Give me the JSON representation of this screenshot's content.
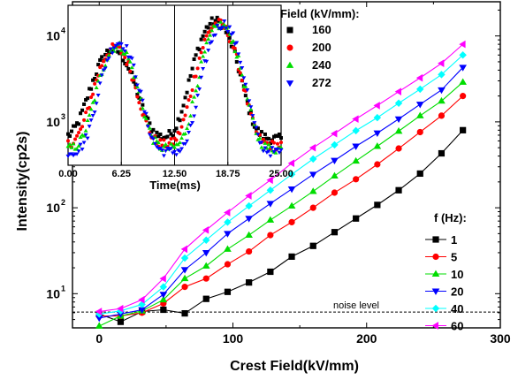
{
  "chart_data": [
    {
      "type": "line",
      "xlabel": "Crest Field(kV/mm)",
      "ylabel": "Intensity(cp2s)",
      "xlim": [
        -20,
        300
      ],
      "ylim": [
        4,
        25000
      ],
      "yscale": "log",
      "x_ticks": [
        0,
        100,
        200,
        300
      ],
      "x_tick_labels": [
        "0",
        "100",
        "200",
        "300"
      ],
      "y_ticks": [
        10,
        100,
        1000,
        10000
      ],
      "y_tick_labels": [
        "10",
        "10",
        "10",
        "10"
      ],
      "y_tick_exponents": [
        "1",
        "2",
        "3",
        "4"
      ],
      "legend_title": "f (Hz):",
      "legend_position": "right",
      "annotation": "noise level",
      "noise_level": 6.1,
      "x": [
        0,
        16,
        32,
        48,
        64,
        80,
        96,
        112,
        128,
        144,
        160,
        176,
        192,
        208,
        224,
        240,
        256,
        272
      ],
      "series": [
        {
          "name": "1",
          "color": "#000000",
          "marker": "square",
          "values": [
            5.8,
            4.7,
            6.2,
            6.5,
            5.9,
            8.7,
            10.5,
            13.5,
            18,
            27,
            36,
            52,
            75,
            108,
            160,
            250,
            430,
            800
          ]
        },
        {
          "name": "5",
          "color": "#ff0000",
          "marker": "circle",
          "values": [
            5.5,
            5.5,
            6.0,
            7.7,
            12,
            15,
            22,
            31,
            48,
            68,
            100,
            150,
            215,
            320,
            490,
            760,
            1180,
            2000
          ]
        },
        {
          "name": "10",
          "color": "#00dd00",
          "marker": "triangle-up",
          "values": [
            4.2,
            5.5,
            6.3,
            8.5,
            15,
            21,
            33,
            48,
            72,
            105,
            155,
            235,
            350,
            520,
            780,
            1180,
            1750,
            2900
          ]
        },
        {
          "name": "20",
          "color": "#0000ff",
          "marker": "triangle-down",
          "values": [
            5.2,
            5.8,
            6.5,
            9.8,
            19,
            30,
            50,
            75,
            112,
            165,
            245,
            355,
            520,
            740,
            1080,
            1600,
            2350,
            4300
          ]
        },
        {
          "name": "40",
          "color": "#00ffff",
          "marker": "diamond",
          "values": [
            5.8,
            6.3,
            7.5,
            12,
            26,
            42,
            68,
            105,
            160,
            245,
            370,
            540,
            790,
            1120,
            1650,
            2400,
            3550,
            6000
          ]
        },
        {
          "name": "60",
          "color": "#ff00ff",
          "marker": "triangle-left",
          "values": [
            6.2,
            6.7,
            8.5,
            15,
            33,
            55,
            88,
            138,
            210,
            330,
            500,
            730,
            1080,
            1550,
            2250,
            3250,
            4800,
            8000
          ]
        }
      ]
    },
    {
      "type": "line",
      "xlabel": "Time(ms)",
      "ylabel": "",
      "xlim": [
        0,
        25
      ],
      "ylim": [
        300,
        13000
      ],
      "yscale": "log",
      "x_ticks": [
        0,
        6.25,
        12.5,
        18.75,
        25
      ],
      "x_tick_labels": [
        "0.00",
        "6.25",
        "12.50",
        "18.75",
        "25.00"
      ],
      "vertical_lines": [
        6.25,
        12.5,
        18.75
      ],
      "legend_title": "Field (kV/mm):",
      "legend_position": "top-right",
      "series": [
        {
          "name": "160",
          "color": "#000000",
          "marker": "square",
          "base": 560,
          "peaks": [
            [
              5.3,
              4600,
              2.5
            ],
            [
              17.3,
              9000,
              2.4
            ]
          ]
        },
        {
          "name": "200",
          "color": "#ff0000",
          "marker": "circle",
          "base": 480,
          "peaks": [
            [
              5.5,
              4800,
              2.3
            ],
            [
              17.6,
              8500,
              2.3
            ]
          ]
        },
        {
          "name": "240",
          "color": "#00dd00",
          "marker": "triangle-up",
          "base": 440,
          "peaks": [
            [
              5.8,
              5000,
              2.2
            ],
            [
              17.9,
              8200,
              2.2
            ]
          ]
        },
        {
          "name": "272",
          "color": "#0000ff",
          "marker": "triangle-down",
          "base": 410,
          "peaks": [
            [
              6.0,
              5400,
              2.1
            ],
            [
              18.2,
              8400,
              2.1
            ]
          ]
        }
      ]
    }
  ]
}
